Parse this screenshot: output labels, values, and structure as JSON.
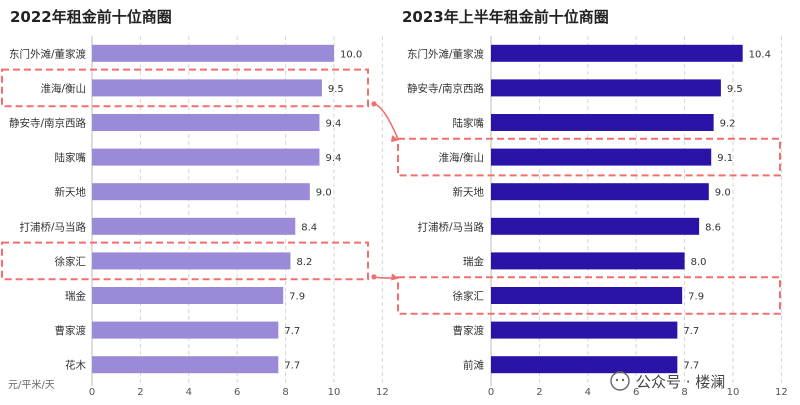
{
  "chart_data": [
    {
      "type": "bar",
      "orientation": "horizontal",
      "title": "2022年租金前十位商圈",
      "unit_label": "元/平米/天",
      "categories": [
        "东门外滩/董家渡",
        "淮海/衡山",
        "静安寺/南京西路",
        "陆家嘴",
        "新天地",
        "打浦桥/马当路",
        "徐家汇",
        "瑞金",
        "曹家渡",
        "花木"
      ],
      "values": [
        10.0,
        9.5,
        9.4,
        9.4,
        9.0,
        8.4,
        8.2,
        7.9,
        7.7,
        7.7
      ],
      "value_labels": [
        "10.0",
        "9.5",
        "9.4",
        "9.4",
        "9.0",
        "8.4",
        "8.2",
        "7.9",
        "7.7",
        "7.7"
      ],
      "xticks": [
        "0",
        "2",
        "4",
        "6",
        "8",
        "10",
        "12"
      ],
      "xlim": [
        0,
        12
      ],
      "grid": "vertical dashed",
      "bar_color": "#9b8ad8",
      "highlighted": [
        "淮海/衡山",
        "徐家汇"
      ]
    },
    {
      "type": "bar",
      "orientation": "horizontal",
      "title": "2023年上半年租金前十位商圈",
      "categories": [
        "东门外滩/董家渡",
        "静安寺/南京西路",
        "陆家嘴",
        "淮海/衡山",
        "新天地",
        "打浦桥/马当路",
        "瑞金",
        "徐家汇",
        "曹家渡",
        "前滩"
      ],
      "values": [
        10.4,
        9.5,
        9.2,
        9.1,
        9.0,
        8.6,
        8.0,
        7.9,
        7.7,
        7.7
      ],
      "value_labels": [
        "10.4",
        "9.5",
        "9.2",
        "9.1",
        "9.0",
        "8.6",
        "8.0",
        "7.9",
        "7.7",
        "7.7"
      ],
      "xticks": [
        "0",
        "2",
        "4",
        "6",
        "8",
        "10",
        "12"
      ],
      "xlim": [
        0,
        12
      ],
      "grid": "vertical dashed",
      "bar_color": "#2a14a8",
      "highlighted": [
        "淮海/衡山",
        "徐家汇"
      ]
    }
  ],
  "highlight_color": "#f07070",
  "watermark": "公众号 · 楼澜"
}
